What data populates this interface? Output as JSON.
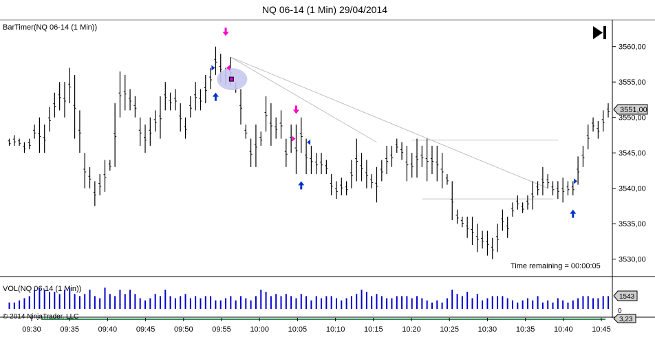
{
  "header": {
    "title": "NQ 06-14 (1 Min)  29/04/2014"
  },
  "price_panel": {
    "label": "BarTimer(NQ 06-14 (1 Min))",
    "time_remaining": "Time remaining = 00:00:05",
    "current_price_label": "3551,00",
    "play_icon": "skip-forward-icon"
  },
  "volume_panel": {
    "label": "VOL(NQ 06-14 (1 Min))",
    "current_volume_label": "1543",
    "lower_label": "3,23",
    "zero_label": "0",
    "copyright": "© 2014 NinjaTrader, LLC"
  },
  "colors": {
    "bars": "#000000",
    "volume": "#0000cc",
    "signal_down": "#ff00cc",
    "signal_up": "#0033cc",
    "highlight": "#c8c8f0",
    "trendline": "#c0c0c0"
  },
  "chart_data": [
    {
      "type": "ohlc",
      "ylim": [
        3528,
        3563
      ],
      "y_ticks": [
        "3560,00",
        "3555,00",
        "3550,00",
        "3545,00",
        "3540,00",
        "3535,00",
        "3530,00"
      ],
      "y_tick_values": [
        3560,
        3555,
        3550,
        3545,
        3540,
        3535,
        3530
      ],
      "x_tick_labels": [
        "09:30",
        "09:35",
        "09:40",
        "09:45",
        "09:50",
        "09:55",
        "10:00",
        "10:05",
        "10:10",
        "10:15",
        "10:20",
        "10:25",
        "10:30",
        "10:35",
        "10:40",
        "10:45"
      ],
      "bars": [
        [
          3547.0,
          3546.0
        ],
        [
          3547.5,
          3546.0
        ],
        [
          3547.0,
          3546.0
        ],
        [
          3546.5,
          3545.0
        ],
        [
          3547.0,
          3545.5
        ],
        [
          3549.0,
          3547.0
        ],
        [
          3550.0,
          3545.0
        ],
        [
          3549.0,
          3545.0
        ],
        [
          3551.5,
          3548.0
        ],
        [
          3553.5,
          3550.0
        ],
        [
          3555.0,
          3551.0
        ],
        [
          3555.0,
          3550.0
        ],
        [
          3557.0,
          3552.0
        ],
        [
          3556.0,
          3547.0
        ],
        [
          3551.0,
          3545.0
        ],
        [
          3545.0,
          3540.0
        ],
        [
          3543.0,
          3540.0
        ],
        [
          3541.0,
          3537.5
        ],
        [
          3542.0,
          3539.0
        ],
        [
          3544.0,
          3539.5
        ],
        [
          3544.0,
          3542.5
        ],
        [
          3552.0,
          3543.0
        ],
        [
          3556.5,
          3550.0
        ],
        [
          3556.0,
          3551.0
        ],
        [
          3554.0,
          3551.0
        ],
        [
          3553.0,
          3550.0
        ],
        [
          3550.0,
          3546.0
        ],
        [
          3549.0,
          3545.0
        ],
        [
          3550.0,
          3546.0
        ],
        [
          3551.0,
          3548.0
        ],
        [
          3553.0,
          3547.0
        ],
        [
          3555.0,
          3551.0
        ],
        [
          3553.5,
          3551.0
        ],
        [
          3554.0,
          3551.0
        ],
        [
          3552.0,
          3548.0
        ],
        [
          3550.0,
          3547.0
        ],
        [
          3553.0,
          3550.0
        ],
        [
          3555.0,
          3551.0
        ],
        [
          3554.0,
          3551.0
        ],
        [
          3556.0,
          3552.0
        ],
        [
          3557.0,
          3554.0
        ],
        [
          3560.0,
          3556.0
        ],
        [
          3559.0,
          3555.0
        ],
        [
          3557.0,
          3554.5
        ],
        [
          3558.5,
          3554.5
        ],
        [
          3555.0,
          3553.5
        ],
        [
          3554.0,
          3549.0
        ],
        [
          3549.0,
          3547.0
        ],
        [
          3547.0,
          3543.0
        ],
        [
          3549.0,
          3543.0
        ],
        [
          3548.0,
          3546.0
        ],
        [
          3553.0,
          3548.0
        ],
        [
          3552.0,
          3546.0
        ],
        [
          3550.0,
          3547.0
        ],
        [
          3551.0,
          3547.0
        ],
        [
          3547.0,
          3543.0
        ],
        [
          3549.0,
          3545.0
        ],
        [
          3549.0,
          3542.0
        ],
        [
          3550.0,
          3545.0
        ],
        [
          3547.0,
          3542.0
        ],
        [
          3546.0,
          3542.0
        ],
        [
          3545.0,
          3542.0
        ],
        [
          3545.0,
          3542.0
        ],
        [
          3544.0,
          3542.0
        ],
        [
          3542.0,
          3539.0
        ],
        [
          3541.0,
          3538.5
        ],
        [
          3541.5,
          3539.0
        ],
        [
          3541.0,
          3539.0
        ],
        [
          3544.0,
          3540.0
        ],
        [
          3547.0,
          3541.0
        ],
        [
          3545.0,
          3541.0
        ],
        [
          3544.0,
          3540.0
        ],
        [
          3542.0,
          3540.0
        ],
        [
          3543.0,
          3538.0
        ],
        [
          3544.0,
          3541.0
        ],
        [
          3546.0,
          3542.0
        ],
        [
          3546.0,
          3543.0
        ],
        [
          3547.0,
          3545.0
        ],
        [
          3546.5,
          3544.0
        ],
        [
          3546.0,
          3541.0
        ],
        [
          3545.0,
          3541.5
        ],
        [
          3547.0,
          3541.5
        ],
        [
          3546.0,
          3543.0
        ],
        [
          3547.0,
          3541.0
        ],
        [
          3546.0,
          3542.0
        ],
        [
          3546.0,
          3541.0
        ],
        [
          3545.0,
          3540.0
        ],
        [
          3542.0,
          3540.5
        ],
        [
          3541.0,
          3535.5
        ],
        [
          3537.0,
          3535.0
        ],
        [
          3536.0,
          3534.5
        ],
        [
          3536.0,
          3533.0
        ],
        [
          3536.0,
          3532.0
        ],
        [
          3535.0,
          3531.0
        ],
        [
          3534.0,
          3531.5
        ],
        [
          3534.0,
          3530.5
        ],
        [
          3533.0,
          3530.0
        ],
        [
          3535.0,
          3531.0
        ],
        [
          3537.0,
          3534.0
        ],
        [
          3536.0,
          3533.0
        ],
        [
          3538.0,
          3536.0
        ],
        [
          3539.0,
          3537.0
        ],
        [
          3538.0,
          3536.5
        ],
        [
          3539.0,
          3537.0
        ],
        [
          3541.0,
          3537.0
        ],
        [
          3541.0,
          3539.0
        ],
        [
          3543.0,
          3539.0
        ],
        [
          3542.0,
          3540.0
        ],
        [
          3541.0,
          3539.0
        ],
        [
          3541.0,
          3538.5
        ],
        [
          3541.5,
          3538.0
        ],
        [
          3541.0,
          3539.0
        ],
        [
          3541.0,
          3539.0
        ],
        [
          3544.5,
          3540.5
        ],
        [
          3546.0,
          3543.0
        ],
        [
          3549.0,
          3545.5
        ],
        [
          3550.0,
          3548.0
        ],
        [
          3549.5,
          3547.0
        ],
        [
          3551.0,
          3548.0
        ],
        [
          3552.0,
          3550.0
        ]
      ],
      "volume": [
        3,
        3,
        4,
        5,
        6,
        9,
        10,
        9,
        8,
        8,
        7,
        9,
        10,
        7,
        6,
        7,
        9,
        6,
        5,
        10,
        7,
        6,
        9,
        7,
        9,
        7,
        5,
        4,
        5,
        7,
        6,
        9,
        6,
        5,
        6,
        7,
        5,
        6,
        5,
        6,
        6,
        4,
        4,
        5,
        6,
        4,
        6,
        5,
        4,
        6,
        9,
        8,
        6,
        7,
        6,
        7,
        6,
        5,
        7,
        6,
        4,
        6,
        5,
        6,
        6,
        5,
        4,
        5,
        6,
        7,
        9,
        8,
        6,
        7,
        6,
        5,
        5,
        6,
        6,
        6,
        5,
        6,
        5,
        4,
        3,
        4,
        3,
        5,
        9,
        7,
        6,
        8,
        5,
        7,
        4,
        5,
        6,
        6,
        6,
        5,
        4,
        3,
        4,
        5,
        4,
        6,
        3,
        4,
        3,
        5,
        4,
        3,
        4,
        5,
        6,
        6,
        5,
        5,
        6,
        6
      ]
    }
  ]
}
